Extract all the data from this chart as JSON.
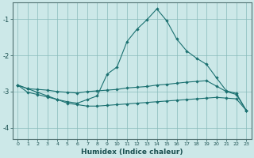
{
  "xlabel": "Humidex (Indice chaleur)",
  "bg_color": "#cce8e8",
  "grid_color": "#88bbbb",
  "line_color": "#1a7070",
  "xlim": [
    -0.5,
    23.5
  ],
  "ylim": [
    -4.3,
    -0.55
  ],
  "yticks": [
    -4,
    -3,
    -2,
    -1
  ],
  "xticks": [
    0,
    1,
    2,
    3,
    4,
    5,
    6,
    7,
    8,
    9,
    10,
    11,
    12,
    13,
    14,
    15,
    16,
    17,
    18,
    19,
    20,
    21,
    22,
    23
  ],
  "line1_x": [
    0,
    1,
    2,
    3,
    4,
    5,
    6,
    7,
    8,
    9,
    10,
    11,
    12,
    13,
    14,
    15,
    16,
    17,
    18,
    19,
    20,
    21,
    22,
    23
  ],
  "line1_y": [
    -2.82,
    -3.02,
    -3.08,
    -3.15,
    -3.22,
    -3.28,
    -3.32,
    -3.22,
    -3.12,
    -2.52,
    -2.32,
    -1.62,
    -1.28,
    -1.02,
    -0.72,
    -1.05,
    -1.55,
    -1.88,
    -2.08,
    -2.25,
    -2.62,
    -2.98,
    -3.05,
    -3.52
  ],
  "line2_x": [
    0,
    1,
    2,
    3,
    4,
    5,
    6,
    7,
    8,
    9,
    10,
    11,
    12,
    13,
    14,
    15,
    16,
    17,
    18,
    19,
    20,
    21,
    22,
    23
  ],
  "line2_y": [
    -2.82,
    -2.92,
    -2.94,
    -2.96,
    -3.0,
    -3.02,
    -3.04,
    -3.0,
    -2.98,
    -2.96,
    -2.94,
    -2.9,
    -2.88,
    -2.86,
    -2.82,
    -2.8,
    -2.77,
    -2.74,
    -2.72,
    -2.7,
    -2.85,
    -3.0,
    -3.08,
    -3.52
  ],
  "line3_x": [
    0,
    1,
    2,
    3,
    4,
    5,
    6,
    7,
    8,
    9,
    10,
    11,
    12,
    13,
    14,
    15,
    16,
    17,
    18,
    19,
    20,
    21,
    22,
    23
  ],
  "line3_y": [
    -2.82,
    -2.92,
    -3.02,
    -3.12,
    -3.22,
    -3.32,
    -3.36,
    -3.4,
    -3.4,
    -3.38,
    -3.36,
    -3.34,
    -3.32,
    -3.3,
    -3.28,
    -3.26,
    -3.24,
    -3.22,
    -3.2,
    -3.18,
    -3.16,
    -3.18,
    -3.2,
    -3.52
  ]
}
